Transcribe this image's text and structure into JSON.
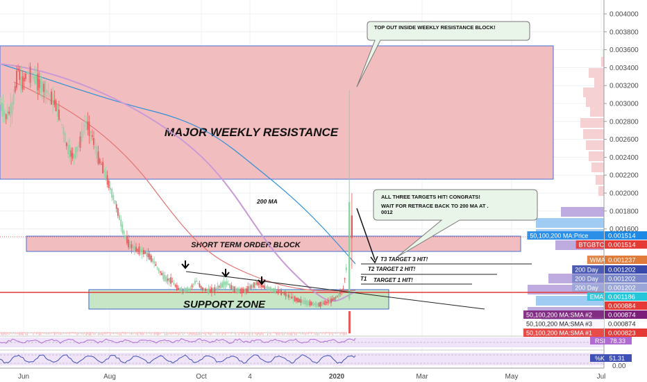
{
  "chart_data": {
    "type": "candlestick",
    "symbol": "BTGBTC",
    "x_ticks": [
      "Jun",
      "Aug",
      "Oct",
      "4",
      "2020",
      "Mar",
      "May",
      "Jul"
    ],
    "y_ticks": [
      "0.004000",
      "0.003800",
      "0.003600",
      "0.003400",
      "0.003200",
      "0.003000",
      "0.002800",
      "0.002600",
      "0.002400",
      "0.002200",
      "0.002000",
      "0.001800",
      "0.001600"
    ],
    "ylim": [
      0.0015,
      0.00405
    ],
    "price_path": [
      [
        0,
        0.003
      ],
      [
        0.01,
        0.00285
      ],
      [
        0.02,
        0.00295
      ],
      [
        0.03,
        0.0034
      ],
      [
        0.035,
        0.0032
      ],
      [
        0.045,
        0.00335
      ],
      [
        0.06,
        0.00325
      ],
      [
        0.075,
        0.00315
      ],
      [
        0.09,
        0.003
      ],
      [
        0.1,
        0.0028
      ],
      [
        0.11,
        0.0025
      ],
      [
        0.12,
        0.0024
      ],
      [
        0.13,
        0.00255
      ],
      [
        0.14,
        0.0028
      ],
      [
        0.15,
        0.00265
      ],
      [
        0.16,
        0.0024
      ],
      [
        0.17,
        0.00225
      ],
      [
        0.18,
        0.00205
      ],
      [
        0.19,
        0.00185
      ],
      [
        0.2,
        0.0016
      ],
      [
        0.21,
        0.00145
      ],
      [
        0.22,
        0.0014
      ],
      [
        0.23,
        0.00138
      ],
      [
        0.24,
        0.00135
      ],
      [
        0.25,
        0.00128
      ],
      [
        0.26,
        0.00118
      ],
      [
        0.27,
        0.0011
      ],
      [
        0.28,
        0.00108
      ],
      [
        0.29,
        0.001
      ],
      [
        0.3,
        0.00098
      ],
      [
        0.31,
        0.001
      ],
      [
        0.32,
        0.00108
      ],
      [
        0.33,
        0.001
      ],
      [
        0.34,
        0.00098
      ],
      [
        0.35,
        0.00099
      ],
      [
        0.36,
        0.00103
      ],
      [
        0.37,
        0.00106
      ],
      [
        0.38,
        0.001
      ],
      [
        0.39,
        0.00098
      ],
      [
        0.4,
        0.00098
      ],
      [
        0.41,
        0.00102
      ],
      [
        0.42,
        0.00106
      ],
      [
        0.43,
        0.00102
      ],
      [
        0.44,
        0.001
      ],
      [
        0.45,
        0.00098
      ],
      [
        0.46,
        0.00096
      ],
      [
        0.47,
        0.00093
      ],
      [
        0.48,
        0.0009
      ],
      [
        0.49,
        0.00088
      ],
      [
        0.5,
        0.00086
      ],
      [
        0.51,
        0.00085
      ],
      [
        0.52,
        0.00084
      ],
      [
        0.53,
        0.00086
      ],
      [
        0.54,
        0.00088
      ],
      [
        0.55,
        0.00092
      ],
      [
        0.56,
        0.001
      ],
      [
        0.565,
        0.0012
      ],
      [
        0.57,
        0.0019
      ],
      [
        0.575,
        0.0016
      ],
      [
        0.58,
        0.00151
      ]
    ],
    "price_spike": {
      "x": 0.57,
      "high": 0.00315,
      "low": 0.00088
    },
    "indicators": [
      {
        "name": "200 MA",
        "color": "#2f8fd6"
      },
      {
        "name": "EMA",
        "color": "#e04a4a"
      },
      {
        "name": "MA",
        "color": "#c89ad6"
      }
    ],
    "price_labels": [
      {
        "label": "50,100,200 MA:Price",
        "value": "0.001514",
        "color": "#1e88e5"
      },
      {
        "label": "BTGBTC",
        "value": "0.001514",
        "color": "#e53935"
      },
      {
        "label": "WMA",
        "value": "0.001237",
        "color": "#e07b39"
      },
      {
        "label": "200 Day",
        "value": "0.001202",
        "color": "#3949ab"
      },
      {
        "label": "200 Day",
        "value": "0.001202",
        "color": "#7986cb"
      },
      {
        "label": "200 Day",
        "value": "0.001202",
        "color": "#9aa5d8"
      },
      {
        "label": "EMA",
        "value": "0.001186",
        "color": "#26c6da"
      },
      {
        "label": "",
        "value": "0.000884",
        "color": "#e53935"
      },
      {
        "label": "50,100,200 MA:SMA #2",
        "value": "0.000874",
        "color": "#7b1f7a"
      },
      {
        "label": "50,100,200 MA:SMA #3",
        "value": "0.000874",
        "color": "#ffffff"
      },
      {
        "label": "50,100,200 MA:SMA #1",
        "value": "0.000823",
        "color": "#e53935"
      }
    ],
    "rsi_label": "RSI",
    "rsi_value": "78.33",
    "stoch_label": "%K",
    "stoch_value": "51.31",
    "lower_ticks": [
      "0.00"
    ]
  },
  "annotations": {
    "resistance": "MAJOR WEEKLY RESISTANCE",
    "order_block": "SHORT TERM ORDER BLOCK",
    "support": "SUPPORT ZONE",
    "ma200": "200 MA",
    "callout_top": "TOP OUT INSIDE WEEKLY RESISTANCE BLOCK!",
    "callout_mid_1": "ALL THREE TARGETS HIT! CONGRATS!",
    "callout_mid_2": "WAIT FOR RETRACE BACK TO 200 MA AT .",
    "callout_mid_3": "0012",
    "t3": "T3  TARGET 3 HIT!",
    "t2": "T2  TARGET 2 HIT!",
    "t1_tag": "T1",
    "t1": "TARGET 1 HIT!"
  },
  "colors": {
    "resistance_fill": "#f2bdbf",
    "resistance_stroke": "#4a6fd6",
    "support_fill": "#c6e6c6",
    "support_stroke": "#3b67c9",
    "callout_fill": "#e8f5e8",
    "candle_down": "#e55b5b",
    "candle_up": "#8fd0a5",
    "volume_up": "#8fd0f4",
    "volume_down": "#f3b4b8",
    "volume_purple": "#b39ddb"
  }
}
